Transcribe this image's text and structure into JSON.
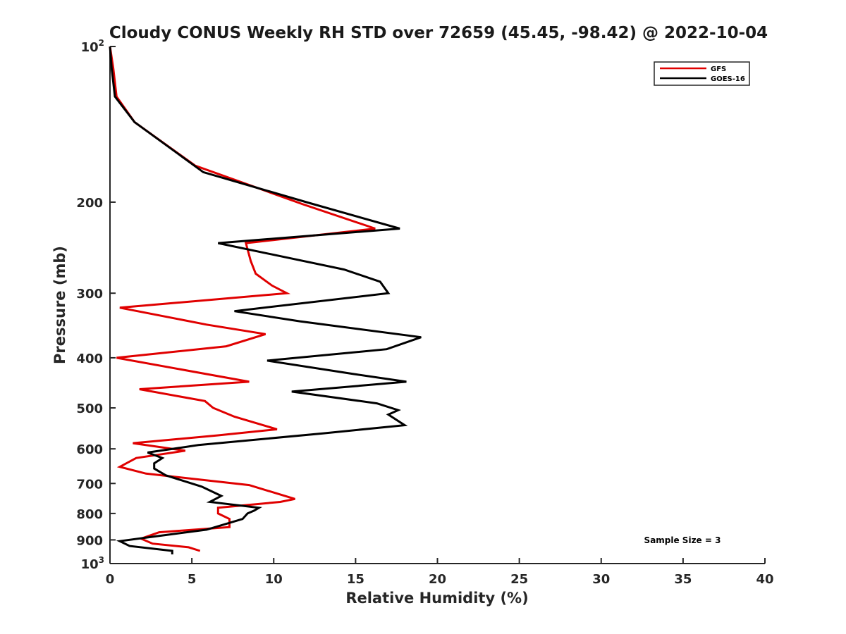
{
  "chart_data": {
    "type": "line",
    "title": "Cloudy CONUS Weekly RH STD over 72659 (45.45, -98.42) @ 2022-10-04",
    "xlabel": "Relative Humidity (%)",
    "ylabel": "Pressure (mb)",
    "xlim": [
      0,
      40
    ],
    "ylim": [
      100,
      1000
    ],
    "y_scale": "log",
    "y_reversed": true,
    "x_ticks": [
      "0",
      "5",
      "10",
      "15",
      "20",
      "25",
      "30",
      "35",
      "40"
    ],
    "y_ticks": [
      {
        "value": 100,
        "base": "10",
        "exp": "2"
      },
      {
        "value": 200,
        "label": "200"
      },
      {
        "value": 300,
        "label": "300"
      },
      {
        "value": 400,
        "label": "400"
      },
      {
        "value": 500,
        "label": "500"
      },
      {
        "value": 600,
        "label": "600"
      },
      {
        "value": 700,
        "label": "700"
      },
      {
        "value": 800,
        "label": "800"
      },
      {
        "value": 900,
        "label": "900"
      },
      {
        "value": 1000,
        "base": "10",
        "exp": "3"
      }
    ],
    "legend_position": "top-right",
    "series": [
      {
        "name": "GFS",
        "color": "#e00000",
        "points": [
          [
            0.0,
            100
          ],
          [
            0.2,
            110
          ],
          [
            0.4,
            125
          ],
          [
            1.5,
            140
          ],
          [
            5.2,
            170
          ],
          [
            11.8,
            202
          ],
          [
            16.2,
            225
          ],
          [
            8.3,
            240
          ],
          [
            8.6,
            260
          ],
          [
            8.9,
            275
          ],
          [
            9.9,
            290
          ],
          [
            10.8,
            300
          ],
          [
            0.6,
            320
          ],
          [
            5.9,
            345
          ],
          [
            9.5,
            360
          ],
          [
            7.1,
            380
          ],
          [
            0.4,
            400
          ],
          [
            5.9,
            430
          ],
          [
            8.5,
            445
          ],
          [
            1.8,
            460
          ],
          [
            5.8,
            485
          ],
          [
            6.3,
            500
          ],
          [
            7.6,
            520
          ],
          [
            10.2,
            550
          ],
          [
            6.6,
            565
          ],
          [
            1.4,
            585
          ],
          [
            4.6,
            605
          ],
          [
            1.6,
            625
          ],
          [
            0.6,
            650
          ],
          [
            2.2,
            670
          ],
          [
            8.5,
            705
          ],
          [
            11.3,
            750
          ],
          [
            10.4,
            760
          ],
          [
            6.6,
            780
          ],
          [
            6.6,
            800
          ],
          [
            7.3,
            820
          ],
          [
            7.3,
            850
          ],
          [
            3.0,
            870
          ],
          [
            1.9,
            895
          ],
          [
            2.6,
            915
          ],
          [
            4.8,
            930
          ],
          [
            5.5,
            945
          ]
        ]
      },
      {
        "name": "GOES-16",
        "color": "#000000",
        "points": [
          [
            0.0,
            100
          ],
          [
            0.1,
            110
          ],
          [
            0.3,
            125
          ],
          [
            1.5,
            140
          ],
          [
            5.7,
            175
          ],
          [
            12.0,
            200
          ],
          [
            17.7,
            225
          ],
          [
            6.6,
            240
          ],
          [
            14.3,
            270
          ],
          [
            16.5,
            285
          ],
          [
            17.0,
            300
          ],
          [
            7.6,
            325
          ],
          [
            11.6,
            340
          ],
          [
            19.0,
            365
          ],
          [
            16.9,
            385
          ],
          [
            9.6,
            405
          ],
          [
            14.9,
            430
          ],
          [
            18.1,
            445
          ],
          [
            11.1,
            465
          ],
          [
            16.3,
            490
          ],
          [
            17.6,
            505
          ],
          [
            17.0,
            515
          ],
          [
            18.0,
            540
          ],
          [
            13.0,
            560
          ],
          [
            5.4,
            590
          ],
          [
            2.3,
            610
          ],
          [
            3.2,
            625
          ],
          [
            2.7,
            640
          ],
          [
            2.7,
            655
          ],
          [
            3.4,
            675
          ],
          [
            5.6,
            710
          ],
          [
            6.8,
            740
          ],
          [
            6.1,
            760
          ],
          [
            9.1,
            780
          ],
          [
            8.8,
            790
          ],
          [
            8.4,
            800
          ],
          [
            8.1,
            820
          ],
          [
            5.9,
            860
          ],
          [
            2.3,
            890
          ],
          [
            0.6,
            905
          ],
          [
            1.2,
            925
          ],
          [
            3.8,
            945
          ],
          [
            3.8,
            960
          ]
        ]
      }
    ],
    "annotation": "Sample Size = 3"
  }
}
